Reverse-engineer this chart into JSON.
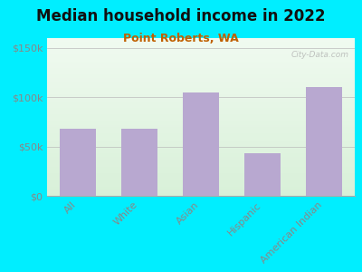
{
  "title": "Median household income in 2022",
  "subtitle": "Point Roberts, WA",
  "categories": [
    "All",
    "White",
    "Asian",
    "Hispanic",
    "American Indian"
  ],
  "values": [
    68000,
    68000,
    105000,
    43000,
    110000
  ],
  "bar_color": "#b8a8d0",
  "background_outer": "#00eeff",
  "grad_top": "#e8f5e0",
  "grad_bottom": "#f5fff0",
  "title_color": "#111111",
  "subtitle_color": "#c06000",
  "tick_label_color": "#888888",
  "ytick_labels": [
    "$0",
    "$50k",
    "$100k",
    "$150k"
  ],
  "ytick_values": [
    0,
    50000,
    100000,
    150000
  ],
  "ylim": [
    0,
    160000
  ],
  "watermark": "City-Data.com",
  "title_fontsize": 12,
  "subtitle_fontsize": 9,
  "tick_fontsize": 8
}
